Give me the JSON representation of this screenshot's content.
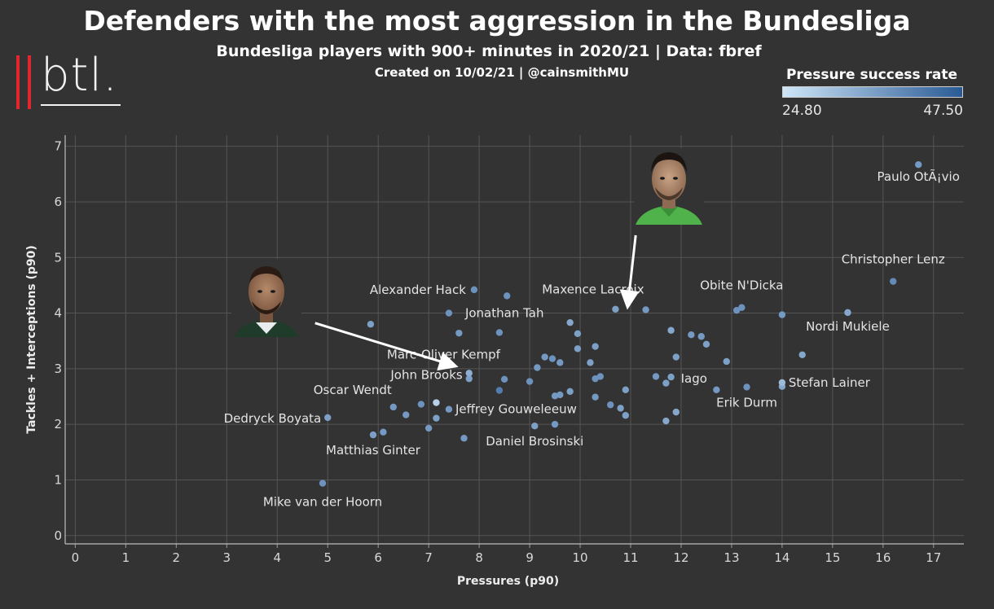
{
  "header": {
    "title": "Defenders with the most aggression in the Bundesliga",
    "subtitle": "Bundesliga players with 900+ minutes in 2020/21 | Data: fbref",
    "credit": "Created on 10/02/21 | @cainsmithMU"
  },
  "logo": {
    "text": "btl."
  },
  "legend": {
    "title": "Pressure success rate",
    "min_label": "24.80",
    "max_label": "47.50",
    "color_low": "#cfe6f8",
    "color_high": "#2a5a95"
  },
  "colors": {
    "background": "#333333",
    "grid": "#555555",
    "point_default": "#7fb2e0",
    "arrow": "#ffffff"
  },
  "chart_data": {
    "type": "scatter",
    "xlabel": "Pressures (p90)",
    "ylabel": "Tackles + Interceptions (p90)",
    "xlim": [
      -0.2,
      17.6
    ],
    "ylim": [
      -0.15,
      7.2
    ],
    "xticks": [
      0,
      1,
      2,
      3,
      4,
      5,
      6,
      7,
      8,
      9,
      10,
      11,
      12,
      13,
      14,
      15,
      16,
      17
    ],
    "yticks": [
      0,
      1,
      2,
      3,
      4,
      5,
      6,
      7
    ],
    "grid": true,
    "labeled_points": [
      {
        "name": "Paulo OtÃ¡vio",
        "x": 16.7,
        "y": 6.67,
        "c": 0.55
      },
      {
        "name": "Christopher Lenz",
        "x": 16.2,
        "y": 4.57,
        "c": 0.65
      },
      {
        "name": "Obite N'Dicka",
        "x": 13.2,
        "y": 4.1,
        "c": 0.6
      },
      {
        "name": "Nordi Mukiele",
        "x": 15.3,
        "y": 4.01,
        "c": 0.45
      },
      {
        "name": "Maxence Lacroix",
        "x": 11.3,
        "y": 4.06,
        "c": 0.55
      },
      {
        "name": "Alexander Hack",
        "x": 7.9,
        "y": 4.42,
        "c": 0.6
      },
      {
        "name": "Jonathan Tah",
        "x": 7.4,
        "y": 4.0,
        "c": 0.6
      },
      {
        "name": "Marc-Oliver Kempf",
        "x": 8.4,
        "y": 3.65,
        "c": 0.6
      },
      {
        "name": "John Brooks",
        "x": 7.8,
        "y": 2.92,
        "c": 0.4
      },
      {
        "name": "Iago",
        "x": 11.8,
        "y": 2.85,
        "c": 0.5
      },
      {
        "name": "Stefan Lainer",
        "x": 14.0,
        "y": 2.75,
        "c": 0.3
      },
      {
        "name": "Erik Durm",
        "x": 13.3,
        "y": 2.67,
        "c": 0.6
      },
      {
        "name": "Oscar Wendt",
        "x": 6.3,
        "y": 2.31,
        "c": 0.55
      },
      {
        "name": "Jeffrey Gouweleeuw",
        "x": 7.4,
        "y": 2.27,
        "c": 0.55
      },
      {
        "name": "Dedryck Boyata",
        "x": 5.0,
        "y": 2.12,
        "c": 0.5
      },
      {
        "name": "Daniel Brosinski",
        "x": 9.1,
        "y": 1.97,
        "c": 0.5
      },
      {
        "name": "Matthias Ginter",
        "x": 5.9,
        "y": 1.81,
        "c": 0.5
      },
      {
        "name": "Mike van der Hoorn",
        "x": 4.9,
        "y": 0.94,
        "c": 0.6
      }
    ],
    "other_points": [
      {
        "x": 5.85,
        "y": 3.8,
        "c": 0.5
      },
      {
        "x": 8.55,
        "y": 4.31,
        "c": 0.6
      },
      {
        "x": 7.6,
        "y": 3.64,
        "c": 0.55
      },
      {
        "x": 9.8,
        "y": 3.83,
        "c": 0.45
      },
      {
        "x": 9.95,
        "y": 3.63,
        "c": 0.5
      },
      {
        "x": 10.7,
        "y": 4.07,
        "c": 0.5
      },
      {
        "x": 13.1,
        "y": 4.05,
        "c": 0.6
      },
      {
        "x": 14.0,
        "y": 3.97,
        "c": 0.55
      },
      {
        "x": 11.8,
        "y": 3.69,
        "c": 0.45
      },
      {
        "x": 12.2,
        "y": 3.61,
        "c": 0.55
      },
      {
        "x": 12.4,
        "y": 3.58,
        "c": 0.55
      },
      {
        "x": 12.5,
        "y": 3.44,
        "c": 0.5
      },
      {
        "x": 10.3,
        "y": 3.4,
        "c": 0.5
      },
      {
        "x": 9.95,
        "y": 3.36,
        "c": 0.5
      },
      {
        "x": 9.3,
        "y": 3.21,
        "c": 0.55
      },
      {
        "x": 9.45,
        "y": 3.18,
        "c": 0.6
      },
      {
        "x": 9.6,
        "y": 3.11,
        "c": 0.55
      },
      {
        "x": 9.15,
        "y": 3.02,
        "c": 0.55
      },
      {
        "x": 10.2,
        "y": 3.11,
        "c": 0.5
      },
      {
        "x": 11.9,
        "y": 3.21,
        "c": 0.5
      },
      {
        "x": 12.9,
        "y": 3.13,
        "c": 0.5
      },
      {
        "x": 14.4,
        "y": 3.25,
        "c": 0.45
      },
      {
        "x": 7.8,
        "y": 2.82,
        "c": 0.5
      },
      {
        "x": 8.5,
        "y": 2.81,
        "c": 0.6
      },
      {
        "x": 9.0,
        "y": 2.77,
        "c": 0.6
      },
      {
        "x": 8.4,
        "y": 2.61,
        "c": 0.75
      },
      {
        "x": 10.3,
        "y": 2.82,
        "c": 0.6
      },
      {
        "x": 10.4,
        "y": 2.86,
        "c": 0.6
      },
      {
        "x": 11.5,
        "y": 2.86,
        "c": 0.55
      },
      {
        "x": 11.7,
        "y": 2.74,
        "c": 0.5
      },
      {
        "x": 10.9,
        "y": 2.62,
        "c": 0.5
      },
      {
        "x": 12.7,
        "y": 2.62,
        "c": 0.55
      },
      {
        "x": 14.0,
        "y": 2.68,
        "c": 0.45
      },
      {
        "x": 9.5,
        "y": 2.51,
        "c": 0.55
      },
      {
        "x": 9.6,
        "y": 2.53,
        "c": 0.55
      },
      {
        "x": 9.8,
        "y": 2.59,
        "c": 0.5
      },
      {
        "x": 10.3,
        "y": 2.49,
        "c": 0.55
      },
      {
        "x": 10.6,
        "y": 2.35,
        "c": 0.6
      },
      {
        "x": 10.8,
        "y": 2.29,
        "c": 0.5
      },
      {
        "x": 10.9,
        "y": 2.16,
        "c": 0.5
      },
      {
        "x": 11.9,
        "y": 2.22,
        "c": 0.45
      },
      {
        "x": 11.7,
        "y": 2.06,
        "c": 0.45
      },
      {
        "x": 9.5,
        "y": 2.0,
        "c": 0.55
      },
      {
        "x": 6.85,
        "y": 2.36,
        "c": 0.6
      },
      {
        "x": 7.15,
        "y": 2.39,
        "c": 0.15
      },
      {
        "x": 6.55,
        "y": 2.17,
        "c": 0.55
      },
      {
        "x": 7.15,
        "y": 2.11,
        "c": 0.5
      },
      {
        "x": 7.0,
        "y": 1.93,
        "c": 0.55
      },
      {
        "x": 6.1,
        "y": 1.86,
        "c": 0.55
      },
      {
        "x": 7.7,
        "y": 1.75,
        "c": 0.55
      }
    ]
  },
  "callouts": [
    {
      "type": "arrow",
      "from": [
        4.75,
        3.82
      ],
      "to": [
        7.45,
        3.07
      ],
      "photo": "john-brooks-photo"
    },
    {
      "type": "arrow",
      "from": [
        11.1,
        5.4
      ],
      "to": [
        10.95,
        4.19
      ],
      "photo": "maxence-lacroix-photo"
    }
  ]
}
